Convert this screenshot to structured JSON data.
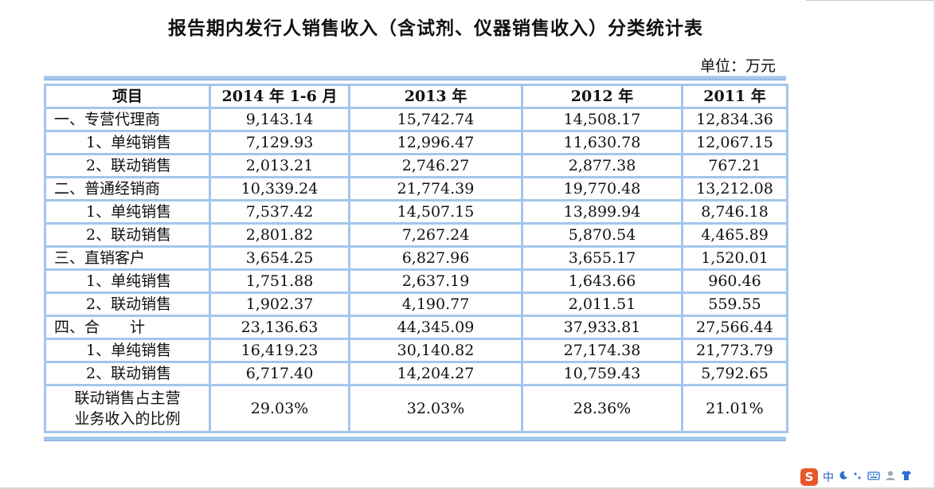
{
  "title": "报告期内发行人销售收入（含试剂、仪器销售收入）分类统计表",
  "unit": "单位：万元",
  "table": {
    "headers": [
      "项目",
      "2014 年 1-6 月",
      "2013 年",
      "2012 年",
      "2011 年"
    ],
    "rows": [
      {
        "label": "一、专营代理商",
        "values": [
          "9,143.14",
          "15,742.74",
          "14,508.17",
          "12,834.36"
        ]
      },
      {
        "label": "1、单纯销售",
        "values": [
          "7,129.93",
          "12,996.47",
          "11,630.78",
          "12,067.15"
        ]
      },
      {
        "label": "2、联动销售",
        "values": [
          "2,013.21",
          "2,746.27",
          "2,877.38",
          "767.21"
        ]
      },
      {
        "label": "二、普通经销商",
        "values": [
          "10,339.24",
          "21,774.39",
          "19,770.48",
          "13,212.08"
        ]
      },
      {
        "label": "1、单纯销售",
        "values": [
          "7,537.42",
          "14,507.15",
          "13,899.94",
          "8,746.18"
        ]
      },
      {
        "label": "2、联动销售",
        "values": [
          "2,801.82",
          "7,267.24",
          "5,870.54",
          "4,465.89"
        ]
      },
      {
        "label": "三、直销客户",
        "values": [
          "3,654.25",
          "6,827.96",
          "3,655.17",
          "1,520.01"
        ]
      },
      {
        "label": "1、单纯销售",
        "values": [
          "1,751.88",
          "2,637.19",
          "1,643.66",
          "960.46"
        ]
      },
      {
        "label": "2、联动销售",
        "values": [
          "1,902.37",
          "4,190.77",
          "2,011.51",
          "559.55"
        ]
      },
      {
        "label": "四、合　　计",
        "values": [
          "23,136.63",
          "44,345.09",
          "37,933.81",
          "27,566.44"
        ]
      },
      {
        "label": "1、单纯销售",
        "values": [
          "16,419.23",
          "30,140.82",
          "27,174.38",
          "21,773.79"
        ]
      },
      {
        "label": "2、联动销售",
        "values": [
          "6,717.40",
          "14,204.27",
          "10,759.43",
          "5,792.65"
        ]
      }
    ],
    "ratio_row": {
      "label_line1": "联动销售占主营",
      "label_line2": "业务收入的比例",
      "values": [
        "29.03%",
        "32.03%",
        "28.36%",
        "21.01%"
      ]
    }
  },
  "taskbar": {
    "ime_logo": "S",
    "ime_mode": "中",
    "icons": [
      "moon-icon",
      "punctuation-icon",
      "keyboard-icon",
      "user-icon",
      "shirt-icon"
    ]
  }
}
